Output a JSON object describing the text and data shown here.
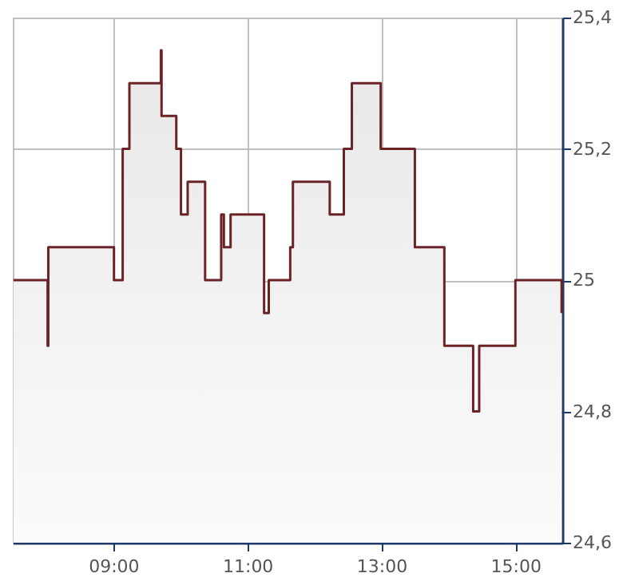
{
  "chart_data": {
    "type": "area",
    "x": [
      7.51,
      8.02,
      8.02,
      8.03,
      8.03,
      9.01,
      9.01,
      9.14,
      9.14,
      9.24,
      9.24,
      9.71,
      9.71,
      9.72,
      9.72,
      9.94,
      9.94,
      10.01,
      10.01,
      10.11,
      10.11,
      10.37,
      10.37,
      10.61,
      10.61,
      10.65,
      10.65,
      10.75,
      10.75,
      11.25,
      11.25,
      11.32,
      11.32,
      11.64,
      11.64,
      11.68,
      11.68,
      12.23,
      12.23,
      12.44,
      12.44,
      12.56,
      12.56,
      12.99,
      12.99,
      13.5,
      13.5,
      13.94,
      13.94,
      14.37,
      14.37,
      14.46,
      14.46,
      15.0,
      15.0,
      15.69,
      15.69
    ],
    "series": [
      {
        "color": "#6b2328",
        "values": [
          25.0,
          25.0,
          24.9,
          24.9,
          25.05,
          25.05,
          25.0,
          25.0,
          25.2,
          25.2,
          25.3,
          25.3,
          25.35,
          25.35,
          25.25,
          25.25,
          25.2,
          25.2,
          25.1,
          25.1,
          25.15,
          25.15,
          25.0,
          25.0,
          25.1,
          25.1,
          25.05,
          25.05,
          25.1,
          25.1,
          24.95,
          24.95,
          25.0,
          25.0,
          25.05,
          25.05,
          25.15,
          25.15,
          25.1,
          25.1,
          25.2,
          25.2,
          25.3,
          25.3,
          25.2,
          25.2,
          25.05,
          25.05,
          24.9,
          24.9,
          24.8,
          24.8,
          24.9,
          24.9,
          25.0,
          25.0,
          24.95
        ]
      }
    ],
    "xlim": [
      7.5,
      15.7
    ],
    "xticks": [
      {
        "value": 9,
        "label": "09:00"
      },
      {
        "value": 11,
        "label": "11:00"
      },
      {
        "value": 13,
        "label": "13:00"
      },
      {
        "value": 15,
        "label": "15:00"
      }
    ],
    "ylim": [
      24.6,
      25.4
    ],
    "yticks": [
      {
        "value": 24.6,
        "label": "24,6"
      },
      {
        "value": 24.8,
        "label": "24,8"
      },
      {
        "value": 25,
        "label": "25"
      },
      {
        "value": 25.2,
        "label": "25,2"
      },
      {
        "value": 25.4,
        "label": "25,4"
      }
    ],
    "grid": true
  }
}
